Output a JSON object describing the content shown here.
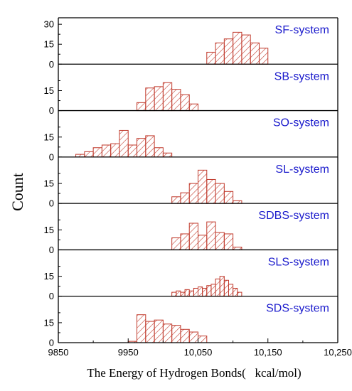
{
  "chart_data": {
    "type": "bar",
    "xlabel": "The Energy of Hydrogen Bonds(   kcal/mol)",
    "ylabel": "Count",
    "xlim": [
      9850,
      10250
    ],
    "x_tick_labels": [
      "9850",
      "9950",
      "10,050",
      "10,150",
      "10,250"
    ],
    "x_tick_values": [
      9850,
      9950,
      10050,
      10150,
      10250
    ],
    "bin_width": 12.5,
    "bar_fill": "#ffffff",
    "bar_stroke": "#c0392b",
    "hatch_color": "#c0392b",
    "label_color": "#1a1acc",
    "panels": [
      {
        "label": "SF-system",
        "ylim": [
          0,
          30
        ],
        "y_tick_labels": [
          "0",
          "15",
          "30"
        ],
        "bins": [
          [
            10062.5,
            9
          ],
          [
            10075,
            16
          ],
          [
            10087.5,
            19
          ],
          [
            10100,
            24
          ],
          [
            10112.5,
            22
          ],
          [
            10125,
            16
          ],
          [
            10137.5,
            12
          ]
        ]
      },
      {
        "label": "SB-system",
        "ylim": [
          0,
          30
        ],
        "y_tick_labels": [
          "0",
          "15"
        ],
        "bins": [
          [
            9962.5,
            6
          ],
          [
            9975,
            17
          ],
          [
            9987.5,
            18
          ],
          [
            10000,
            21
          ],
          [
            10012.5,
            16
          ],
          [
            10025,
            12
          ],
          [
            10037.5,
            5
          ]
        ]
      },
      {
        "label": "SO-system",
        "ylim": [
          0,
          30
        ],
        "y_tick_labels": [
          "0",
          "15"
        ],
        "bins": [
          [
            9875,
            2
          ],
          [
            9887.5,
            4
          ],
          [
            9900,
            7
          ],
          [
            9912.5,
            9
          ],
          [
            9925,
            10
          ],
          [
            9937.5,
            20
          ],
          [
            9950,
            9
          ],
          [
            9962.5,
            14
          ],
          [
            9975,
            16
          ],
          [
            9987.5,
            7
          ],
          [
            10000,
            3
          ]
        ]
      },
      {
        "label": "SL-system",
        "ylim": [
          0,
          30
        ],
        "y_tick_labels": [
          "0",
          "15"
        ],
        "bins": [
          [
            10012.5,
            5
          ],
          [
            10025,
            8
          ],
          [
            10037.5,
            15
          ],
          [
            10050,
            25
          ],
          [
            10062.5,
            18
          ],
          [
            10075,
            15
          ],
          [
            10087.5,
            9
          ],
          [
            10100,
            2
          ]
        ]
      },
      {
        "label": "SDBS-system",
        "ylim": [
          0,
          30
        ],
        "y_tick_labels": [
          "0",
          "15"
        ],
        "bins": [
          [
            10012.5,
            9
          ],
          [
            10025,
            12
          ],
          [
            10037.5,
            20
          ],
          [
            10050,
            11
          ],
          [
            10062.5,
            21
          ],
          [
            10075,
            13
          ],
          [
            10087.5,
            12
          ],
          [
            10100,
            2
          ]
        ]
      },
      {
        "label": "SLS-system",
        "ylim": [
          0,
          30
        ],
        "y_tick_labels": [
          "0",
          "15"
        ],
        "bins": [
          [
            10012.5,
            3
          ],
          [
            10018.75,
            4
          ],
          [
            10025,
            3
          ],
          [
            10031.25,
            5
          ],
          [
            10037.5,
            4
          ],
          [
            10043.75,
            6
          ],
          [
            10050,
            7
          ],
          [
            10056.25,
            6
          ],
          [
            10062.5,
            8
          ],
          [
            10068.75,
            9
          ],
          [
            10075,
            13
          ],
          [
            10081.25,
            15
          ],
          [
            10087.5,
            12
          ],
          [
            10093.75,
            9
          ],
          [
            10100,
            6
          ],
          [
            10106.25,
            3
          ]
        ],
        "bin_width": 6.25
      },
      {
        "label": "SDS-system",
        "ylim": [
          0,
          30
        ],
        "y_tick_labels": [
          "0",
          "15"
        ],
        "bins": [
          [
            9950,
            1
          ],
          [
            9962.5,
            21
          ],
          [
            9975,
            16
          ],
          [
            9987.5,
            17
          ],
          [
            10000,
            14
          ],
          [
            10012.5,
            13
          ],
          [
            10025,
            10
          ],
          [
            10037.5,
            8
          ],
          [
            10050,
            5
          ]
        ]
      }
    ]
  }
}
